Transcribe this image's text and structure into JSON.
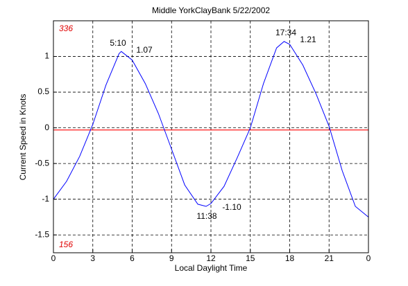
{
  "chart_data": {
    "type": "line",
    "title": "Middle YorkClayBank 5/22/2002",
    "xlabel": "Local Daylight Time",
    "ylabel": "Current Speed in Knots",
    "x": [
      0,
      1,
      2,
      3,
      4,
      5,
      5.17,
      6,
      7,
      8,
      9,
      10,
      11,
      11.63,
      12,
      13,
      14,
      15,
      16,
      17,
      17.57,
      18,
      19,
      20,
      21,
      22,
      23,
      24
    ],
    "series": [
      {
        "name": "Current",
        "color": "#0000ff",
        "values": [
          -1.0,
          -0.75,
          -0.4,
          0.05,
          0.6,
          1.04,
          1.07,
          0.95,
          0.62,
          0.2,
          -0.3,
          -0.8,
          -1.07,
          -1.1,
          -1.06,
          -0.82,
          -0.42,
          0.0,
          0.62,
          1.12,
          1.21,
          1.17,
          0.88,
          0.48,
          0.02,
          -0.6,
          -1.1,
          -1.25
        ]
      }
    ],
    "reference_line": {
      "value": -0.03,
      "color": "#ff0000"
    },
    "xlim": [
      0,
      24
    ],
    "xticks": [
      0,
      3,
      6,
      9,
      12,
      15,
      18,
      21,
      {
        "value": 24,
        "label": "0"
      }
    ],
    "ylim": [
      -1.75,
      1.5
    ],
    "yticks": [
      -1.5,
      -1,
      -0.5,
      0,
      0.5,
      1
    ],
    "grid": true,
    "annotations": [
      "336",
      "156",
      "5:10",
      "1.07",
      "17:34",
      "1.21",
      "11:38",
      "-1.10"
    ]
  }
}
